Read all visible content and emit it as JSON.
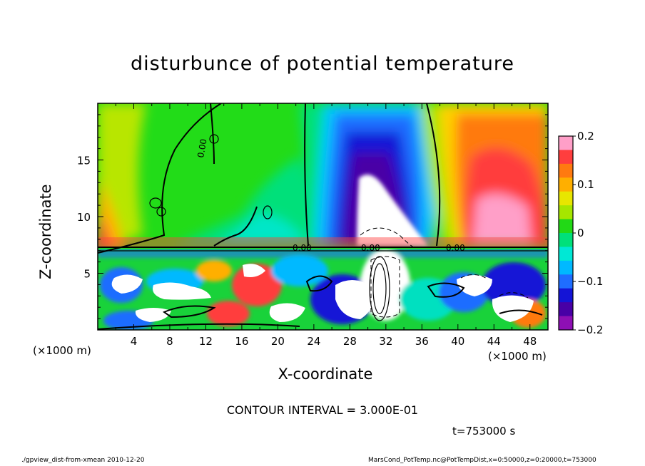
{
  "title": "disturbunce of potential temperature",
  "chart_data": {
    "type": "heatmap",
    "title": "disturbunce of potential temperature",
    "xlabel": "X-coordinate",
    "ylabel": "Z-coordinate",
    "x_unit": "(×1000 m)",
    "y_unit": "(×1000 m)",
    "xlim": [
      0,
      50
    ],
    "ylim": [
      0,
      20
    ],
    "x_ticks": [
      "4",
      "8",
      "12",
      "16",
      "20",
      "24",
      "28",
      "32",
      "36",
      "40",
      "44",
      "48"
    ],
    "y_ticks": [
      "5",
      "10",
      "15"
    ],
    "colorbar": {
      "range": [
        -0.2,
        0.2
      ],
      "tick_labels": [
        "0.2",
        "0.1",
        "0",
        "−0.1",
        "−0.2"
      ],
      "colors": [
        "#ff9fc8",
        "#ff3e3e",
        "#ff7a10",
        "#ffaf00",
        "#e8e600",
        "#a6e600",
        "#22d916",
        "#00e07a",
        "#00e8d5",
        "#00b9ff",
        "#1f6dff",
        "#1414d6",
        "#4800a6",
        "#8e0fb4"
      ]
    },
    "contour_labels": [
      "0.00"
    ],
    "contour_interval": "CONTOUR INTERVAL = 3.000E-01",
    "time": "t=753000 s",
    "grid": false
  },
  "footer": {
    "left": "./gpview_dist-from-xmean  2010-12-20",
    "right": "MarsCond_PotTemp.nc@PotTempDist,x=0:50000,z=0:20000,t=753000"
  }
}
